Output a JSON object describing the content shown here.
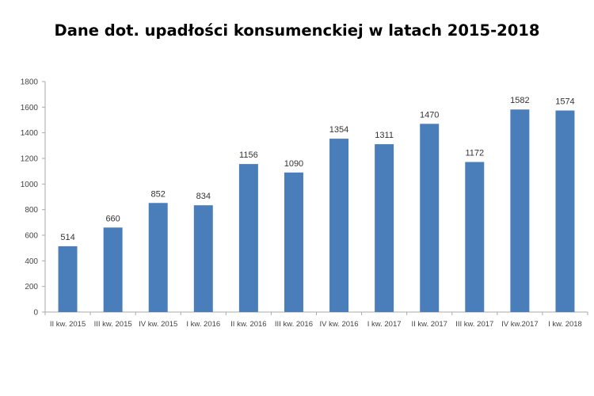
{
  "chart_data": {
    "type": "bar",
    "title": "Dane dot. upadłości konsumenckiej w latach 2015-2018",
    "xlabel": "",
    "ylabel": "",
    "categories": [
      "II kw. 2015",
      "III kw. 2015",
      "IV kw. 2015",
      "I kw. 2016",
      "II kw. 2016",
      "III kw. 2016",
      "IV kw. 2016",
      "I kw. 2017",
      "II kw. 2017",
      "III kw. 2017",
      "IV kw.2017",
      "I kw. 2018"
    ],
    "values": [
      514,
      660,
      852,
      834,
      1156,
      1090,
      1354,
      1311,
      1470,
      1172,
      1582,
      1574
    ],
    "ylim": [
      0,
      1800
    ],
    "yticks": [
      0,
      200,
      400,
      600,
      800,
      1000,
      1200,
      1400,
      1600,
      1800
    ],
    "grid": false,
    "data_labels": true,
    "legend": "none",
    "colors": {
      "bar": "#4a7ebb",
      "axis": "#aaaaaa",
      "text": "#333333"
    }
  }
}
